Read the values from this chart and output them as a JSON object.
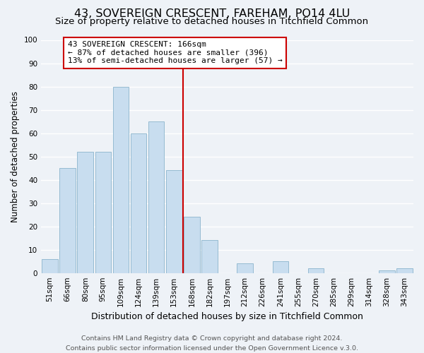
{
  "title": "43, SOVEREIGN CRESCENT, FAREHAM, PO14 4LU",
  "subtitle": "Size of property relative to detached houses in Titchfield Common",
  "xlabel": "Distribution of detached houses by size in Titchfield Common",
  "ylabel": "Number of detached properties",
  "footer_line1": "Contains HM Land Registry data © Crown copyright and database right 2024.",
  "footer_line2": "Contains public sector information licensed under the Open Government Licence v.3.0.",
  "bar_labels": [
    "51sqm",
    "66sqm",
    "80sqm",
    "95sqm",
    "109sqm",
    "124sqm",
    "139sqm",
    "153sqm",
    "168sqm",
    "182sqm",
    "197sqm",
    "212sqm",
    "226sqm",
    "241sqm",
    "255sqm",
    "270sqm",
    "285sqm",
    "299sqm",
    "314sqm",
    "328sqm",
    "343sqm"
  ],
  "bar_values": [
    6,
    45,
    52,
    52,
    80,
    60,
    65,
    44,
    24,
    14,
    0,
    4,
    0,
    5,
    0,
    2,
    0,
    0,
    0,
    1,
    2
  ],
  "bar_color": "#c8ddef",
  "bar_edge_color": "#8ab4cc",
  "vline_color": "#cc0000",
  "annotation_title": "43 SOVEREIGN CRESCENT: 166sqm",
  "annotation_line1": "← 87% of detached houses are smaller (396)",
  "annotation_line2": "13% of semi-detached houses are larger (57) →",
  "annotation_box_color": "#ffffff",
  "annotation_box_edge": "#cc0000",
  "ylim": [
    0,
    100
  ],
  "yticks": [
    0,
    10,
    20,
    30,
    40,
    50,
    60,
    70,
    80,
    90,
    100
  ],
  "bg_color": "#eef2f7",
  "grid_color": "#ffffff",
  "title_fontsize": 11.5,
  "subtitle_fontsize": 9.5,
  "xlabel_fontsize": 9,
  "ylabel_fontsize": 8.5,
  "tick_fontsize": 7.5,
  "annotation_fontsize": 8,
  "footer_fontsize": 6.8
}
